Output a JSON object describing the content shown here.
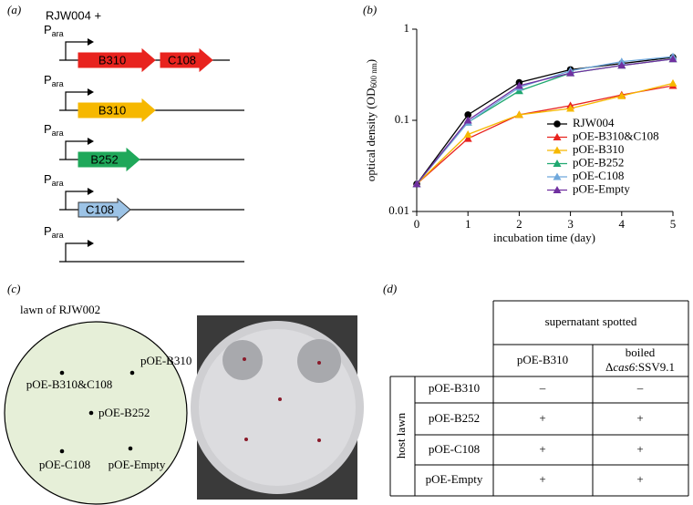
{
  "panel_a": {
    "label": "(a)",
    "strain": "RJW004 +",
    "constructs": [
      {
        "promoter": "P",
        "promoter_sub": "ara",
        "genes": [
          {
            "name": "B310",
            "color": "#e8231e"
          },
          {
            "name": "C108",
            "color": "#e8231e"
          }
        ]
      },
      {
        "promoter": "P",
        "promoter_sub": "ara",
        "genes": [
          {
            "name": "B310",
            "color": "#f6b800"
          }
        ]
      },
      {
        "promoter": "P",
        "promoter_sub": "ara",
        "genes": [
          {
            "name": "B252",
            "color": "#1fa85a"
          }
        ]
      },
      {
        "promoter": "P",
        "promoter_sub": "ara",
        "genes": [
          {
            "name": "C108",
            "color": "#9cc3e6"
          }
        ]
      },
      {
        "promoter": "P",
        "promoter_sub": "ara",
        "genes": []
      }
    ]
  },
  "chart_data": {
    "type": "line",
    "panel_label": "(b)",
    "xlabel": "incubation time (day)",
    "ylabel_parts": [
      "optical density (OD",
      "600 nm",
      ")"
    ],
    "x": [
      0,
      1,
      2,
      3,
      4,
      5
    ],
    "series": [
      {
        "name": "RJW004",
        "color": "#000000",
        "marker": "circle",
        "values": [
          0.02,
          0.115,
          0.26,
          0.36,
          0.42,
          0.49
        ]
      },
      {
        "name": "pOE-B310&C108",
        "color": "#e8231e",
        "marker": "triangle",
        "values": [
          0.02,
          0.063,
          0.115,
          0.145,
          0.19,
          0.24
        ]
      },
      {
        "name": "pOE-B310",
        "color": "#f6b800",
        "marker": "triangle",
        "values": [
          0.02,
          0.07,
          0.115,
          0.135,
          0.185,
          0.255
        ]
      },
      {
        "name": "pOE-B252",
        "color": "#1fa870",
        "marker": "triangle",
        "values": [
          0.02,
          0.095,
          0.21,
          0.33,
          0.4,
          0.47
        ]
      },
      {
        "name": "pOE-C108",
        "color": "#6fa8dc",
        "marker": "triangle",
        "values": [
          0.02,
          0.095,
          0.23,
          0.35,
          0.44,
          0.5
        ]
      },
      {
        "name": "pOE-Empty",
        "color": "#7030a0",
        "marker": "triangle",
        "values": [
          0.02,
          0.1,
          0.24,
          0.33,
          0.4,
          0.47
        ]
      }
    ],
    "xlim": [
      0,
      5
    ],
    "xticks": [
      0,
      1,
      2,
      3,
      4,
      5
    ],
    "ylim": [
      0.01,
      1
    ],
    "yticks": [
      0.01,
      0.1,
      1
    ],
    "ylog": true,
    "legend": "right"
  },
  "panel_c": {
    "label": "(c)",
    "lawn": "lawn of RJW002",
    "spots": [
      "pOE-B310",
      "pOE-B310&C108",
      "pOE-B252",
      "pOE-C108",
      "pOE-Empty"
    ]
  },
  "panel_d": {
    "label": "(d)",
    "group_header": "supernatant spotted",
    "columns": [
      "pOE-B310",
      {
        "line1": "boiled",
        "line2": [
          "Δ",
          "cas6",
          ":SSV9.1"
        ]
      }
    ],
    "row_group": "host lawn",
    "rows": [
      [
        "pOE-B310",
        "–",
        "–"
      ],
      [
        "pOE-B252",
        "+",
        "+"
      ],
      [
        "pOE-C108",
        "+",
        "+"
      ],
      [
        "pOE-Empty",
        "+",
        "+"
      ]
    ]
  }
}
